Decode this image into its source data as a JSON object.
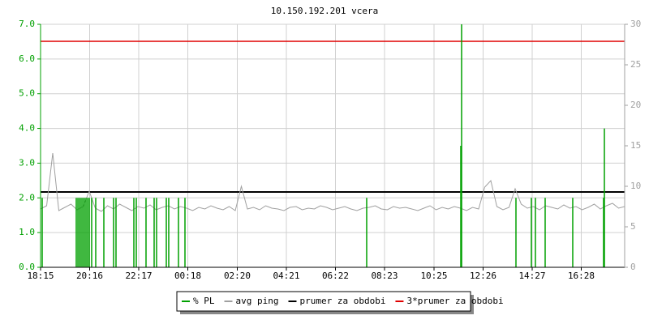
{
  "chart_data": {
    "type": "line",
    "title": "10.150.192.201 vcera",
    "xlim": [
      0,
      1440
    ],
    "xticks": [
      {
        "value": 0,
        "label": "18:15"
      },
      {
        "value": 121,
        "label": "20:16"
      },
      {
        "value": 242,
        "label": "22:17"
      },
      {
        "value": 363,
        "label": "00:18"
      },
      {
        "value": 485,
        "label": "02:20"
      },
      {
        "value": 606,
        "label": "04:21"
      },
      {
        "value": 727,
        "label": "06:22"
      },
      {
        "value": 848,
        "label": "08:23"
      },
      {
        "value": 970,
        "label": "10:25"
      },
      {
        "value": 1091,
        "label": "12:26"
      },
      {
        "value": 1212,
        "label": "14:27"
      },
      {
        "value": 1333,
        "label": "16:28"
      }
    ],
    "ylim": [
      0,
      7
    ],
    "yticks": [
      {
        "value": 0,
        "label": "0.0"
      },
      {
        "value": 1,
        "label": "1.0"
      },
      {
        "value": 2,
        "label": "2.0"
      },
      {
        "value": 3,
        "label": "3.0"
      },
      {
        "value": 4,
        "label": "4.0"
      },
      {
        "value": 5,
        "label": "5.0"
      },
      {
        "value": 6,
        "label": "6.0"
      },
      {
        "value": 7,
        "label": "7.0"
      }
    ],
    "y2lim": [
      0,
      30
    ],
    "y2ticks": [
      0,
      5,
      10,
      15,
      20,
      25,
      30
    ],
    "grid": true,
    "series": [
      {
        "name": "% PL",
        "color": "#00a000",
        "style": "impulse",
        "x": [
          4,
          88,
          92,
          96,
          100,
          104,
          108,
          112,
          116,
          120,
          126,
          136,
          156,
          180,
          186,
          230,
          236,
          260,
          280,
          286,
          310,
          316,
          340,
          356,
          804,
          1036,
          1038,
          1172,
          1210,
          1220,
          1244,
          1312,
          1388,
          1390
        ],
        "values": [
          2,
          2,
          2,
          2,
          2,
          2,
          2,
          2,
          2,
          2,
          2,
          2,
          2,
          2,
          2,
          2,
          2,
          2,
          2,
          2,
          2,
          2,
          2,
          2,
          2,
          3.5,
          7,
          2,
          2,
          2,
          2,
          2,
          2,
          4
        ]
      },
      {
        "name": "avg ping",
        "color": "#a0a0a0",
        "axis": "y2",
        "style": "line",
        "x": [
          0,
          15,
          30,
          45,
          60,
          75,
          90,
          105,
          120,
          135,
          150,
          165,
          180,
          195,
          210,
          225,
          240,
          255,
          270,
          285,
          300,
          315,
          330,
          345,
          360,
          375,
          390,
          405,
          420,
          435,
          450,
          465,
          480,
          495,
          510,
          525,
          540,
          555,
          570,
          585,
          600,
          615,
          630,
          645,
          660,
          675,
          690,
          705,
          720,
          735,
          750,
          765,
          780,
          795,
          810,
          825,
          840,
          855,
          870,
          885,
          900,
          915,
          930,
          945,
          960,
          975,
          990,
          1005,
          1020,
          1035,
          1050,
          1065,
          1080,
          1095,
          1110,
          1125,
          1140,
          1155,
          1170,
          1185,
          1200,
          1215,
          1230,
          1245,
          1260,
          1275,
          1290,
          1305,
          1320,
          1335,
          1350,
          1365,
          1380,
          1395,
          1410,
          1425,
          1440
        ],
        "values": [
          7.2,
          7.6,
          14.1,
          7.0,
          7.4,
          7.8,
          7.1,
          7.5,
          9.4,
          7.3,
          6.9,
          7.6,
          7.2,
          7.8,
          7.4,
          7.0,
          7.5,
          7.3,
          7.7,
          7.1,
          7.4,
          7.6,
          7.2,
          7.5,
          7.3,
          7.0,
          7.4,
          7.2,
          7.6,
          7.3,
          7.1,
          7.5,
          7.0,
          10.0,
          7.2,
          7.4,
          7.1,
          7.6,
          7.3,
          7.2,
          7.0,
          7.4,
          7.5,
          7.1,
          7.3,
          7.2,
          7.6,
          7.4,
          7.1,
          7.3,
          7.5,
          7.2,
          7.0,
          7.3,
          7.4,
          7.6,
          7.2,
          7.1,
          7.5,
          7.3,
          7.4,
          7.2,
          7.0,
          7.3,
          7.6,
          7.1,
          7.4,
          7.2,
          7.5,
          7.3,
          7.0,
          7.4,
          7.2,
          9.9,
          10.7,
          7.5,
          7.1,
          7.4,
          9.7,
          7.8,
          7.3,
          7.5,
          7.1,
          7.6,
          7.4,
          7.2,
          7.7,
          7.3,
          7.5,
          7.1,
          7.4,
          7.8,
          7.2,
          7.6,
          7.9,
          7.3,
          7.5
        ]
      },
      {
        "name": "prumer za obdobi",
        "color": "#000000",
        "axis": "y2",
        "style": "hline",
        "values": [
          9.3
        ]
      },
      {
        "name": "3*prumer za obdobi",
        "color": "#e00000",
        "axis": "y2",
        "style": "hline",
        "values": [
          27.9
        ]
      }
    ]
  }
}
